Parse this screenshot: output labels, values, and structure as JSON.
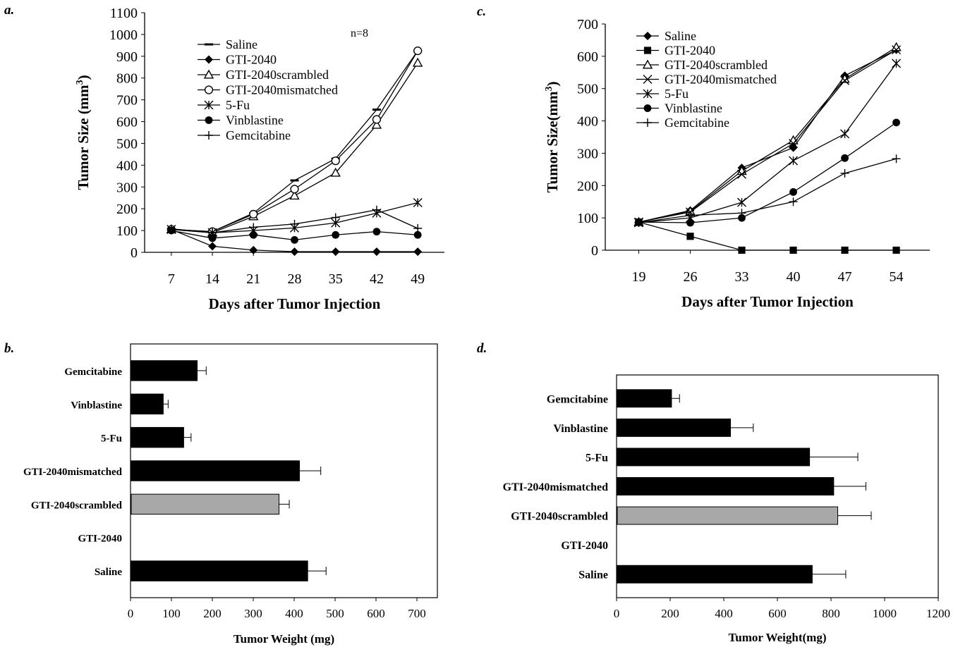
{
  "panels": {
    "a": "a.",
    "b": "b.",
    "c": "c.",
    "d": "d."
  },
  "chart_data": [
    {
      "id": "a",
      "type": "line",
      "annotation": "n=8",
      "xlabel": "Days after Tumor Injection",
      "ylabel": "Tumor Size (mm",
      "ylabel_sup": "3",
      "ylabel_close": ")",
      "x": [
        7,
        14,
        21,
        28,
        35,
        42,
        49
      ],
      "ylim": [
        0,
        1100
      ],
      "yticks": [
        0,
        100,
        200,
        300,
        400,
        500,
        600,
        700,
        800,
        900,
        1000,
        1100
      ],
      "series": [
        {
          "name": "Saline",
          "marker": "dash",
          "values": [
            105,
            95,
            180,
            330,
            430,
            655,
            925
          ]
        },
        {
          "name": "GTI-2040",
          "marker": "diamond",
          "values": [
            105,
            28,
            10,
            3,
            3,
            3,
            3
          ]
        },
        {
          "name": "GTI-2040scrambled",
          "marker": "triangle-open",
          "values": [
            105,
            90,
            165,
            260,
            365,
            585,
            870
          ]
        },
        {
          "name": "GTI-2040mismatched",
          "marker": "circle-open",
          "values": [
            105,
            95,
            175,
            290,
            420,
            610,
            925
          ]
        },
        {
          "name": "5-Fu",
          "marker": "asterisk",
          "values": [
            105,
            90,
            100,
            112,
            135,
            180,
            228
          ]
        },
        {
          "name": "Vinblastine",
          "marker": "circle-filled",
          "values": [
            100,
            65,
            80,
            57,
            80,
            95,
            80
          ]
        },
        {
          "name": "Gemcitabine",
          "marker": "plus",
          "values": [
            108,
            90,
            115,
            130,
            160,
            195,
            110
          ]
        }
      ]
    },
    {
      "id": "b",
      "type": "bar",
      "orientation": "horizontal",
      "xlabel": "Tumor Weight (mg)",
      "xlim": [
        0,
        750
      ],
      "xticks": [
        0,
        100,
        200,
        300,
        400,
        500,
        600,
        700
      ],
      "categories": [
        "Gemcitabine",
        "Vinblastine",
        "5-Fu",
        "GTI-2040mismatched",
        "GTI-2040scrambled",
        "GTI-2040",
        "Saline"
      ],
      "values": [
        163,
        80,
        130,
        413,
        363,
        0,
        433
      ],
      "errors": [
        22,
        12,
        18,
        52,
        25,
        0,
        45
      ],
      "colors": [
        "#000000",
        "#000000",
        "#000000",
        "#000000",
        "#a8a8a8",
        "#000000",
        "#000000"
      ]
    },
    {
      "id": "c",
      "type": "line",
      "xlabel": "Days after Tumor Injection",
      "ylabel": "Tumor Size(mm",
      "ylabel_sup": "3",
      "ylabel_close": ")",
      "x": [
        19,
        26,
        33,
        40,
        47,
        54
      ],
      "ylim": [
        0,
        700
      ],
      "yticks": [
        0,
        100,
        200,
        300,
        400,
        500,
        600,
        700
      ],
      "series": [
        {
          "name": "Saline",
          "marker": "diamond",
          "values": [
            87,
            123,
            255,
            317,
            540,
            620
          ]
        },
        {
          "name": "GTI-2040",
          "marker": "square",
          "values": [
            87,
            43,
            0,
            0,
            0,
            0
          ]
        },
        {
          "name": "GTI-2040scrambled",
          "marker": "triangle-open",
          "values": [
            87,
            120,
            245,
            340,
            530,
            628
          ]
        },
        {
          "name": "GTI-2040mismatched",
          "marker": "x",
          "values": [
            87,
            118,
            235,
            330,
            525,
            620
          ]
        },
        {
          "name": "5-Fu",
          "marker": "asterisk",
          "values": [
            85,
            100,
            148,
            277,
            360,
            578
          ]
        },
        {
          "name": "Vinblastine",
          "marker": "circle-filled",
          "values": [
            87,
            85,
            100,
            180,
            285,
            395
          ]
        },
        {
          "name": "Gemcitabine",
          "marker": "plus",
          "values": [
            85,
            108,
            115,
            150,
            238,
            283
          ]
        }
      ]
    },
    {
      "id": "d",
      "type": "bar",
      "orientation": "horizontal",
      "xlabel": "Tumor Weight(mg)",
      "xlim": [
        0,
        1200
      ],
      "xticks": [
        0,
        200,
        400,
        600,
        800,
        1000,
        1200
      ],
      "categories": [
        "Gemcitabine",
        "Vinblastine",
        "5-Fu",
        "GTI-2040mismatched",
        "GTI-2040scrambled",
        "GTI-2040",
        "Saline"
      ],
      "values": [
        205,
        425,
        720,
        810,
        825,
        0,
        730
      ],
      "errors": [
        30,
        85,
        180,
        120,
        125,
        0,
        125
      ],
      "colors": [
        "#000000",
        "#000000",
        "#000000",
        "#000000",
        "#a8a8a8",
        "#000000",
        "#000000"
      ]
    }
  ]
}
